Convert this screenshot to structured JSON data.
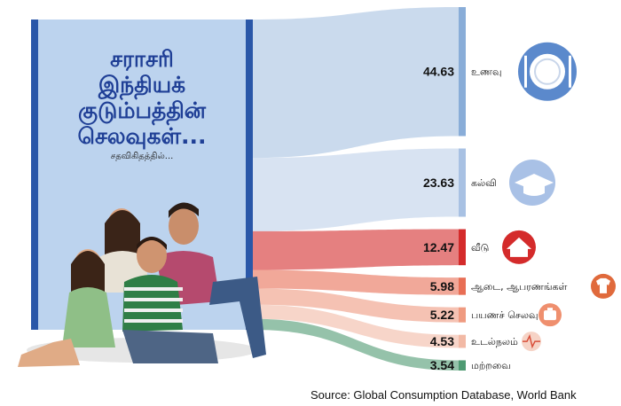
{
  "title_lines": [
    "சராசரி",
    "இந்தியக்",
    "குடும்பத்தின்",
    "செலவுகள்..."
  ],
  "subtitle": "சதவிகிதத்தில்...",
  "source": "Source: Global Consumption Database, World Bank",
  "chart_data": {
    "type": "bar",
    "categories": [
      "உணவு",
      "கல்வி",
      "வீடு",
      "ஆடை, ஆபரணங்கள்",
      "பயணச் செலவு",
      "உடல்நலம்",
      "மற்றவை"
    ],
    "values": [
      44.63,
      23.63,
      12.47,
      5.98,
      5.22,
      4.53,
      3.54
    ],
    "colors": [
      "#89add8",
      "#a8c1e3",
      "#d42b2b",
      "#e86e55",
      "#ef9a80",
      "#f2b9a5",
      "#4e9a72"
    ],
    "icons": [
      "plate-icon",
      "graduation-cap-icon",
      "house-icon",
      "shirt-icon",
      "suitcase-icon",
      "heartbeat-icon",
      ""
    ]
  }
}
